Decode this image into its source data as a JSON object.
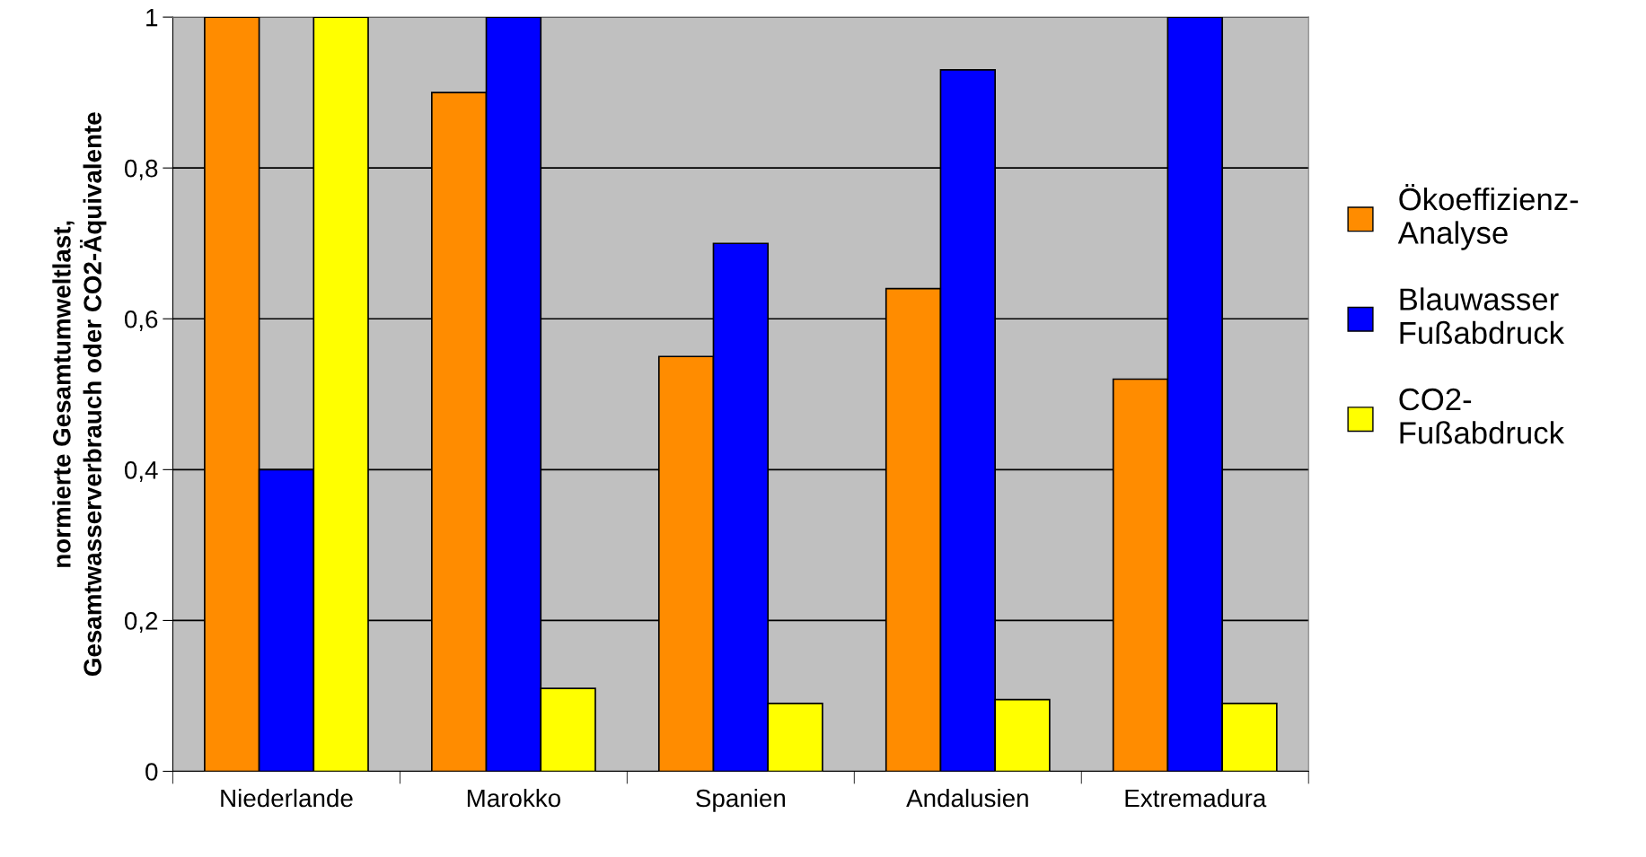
{
  "chart_data": {
    "type": "bar",
    "ylabel": "normierte Gesamtumweltlast,\nGesamtwasserverbrauch oder CO2-Äquivalente",
    "categories": [
      "Niederlande",
      "Marokko",
      "Spanien",
      "Andalusien",
      "Extremadura"
    ],
    "series": [
      {
        "name": "Ökoeffizienz-\nAnalyse",
        "color": "#ff8c00",
        "values": [
          1,
          0.9,
          0.55,
          0.64,
          0.52
        ]
      },
      {
        "name": "Blauwasser\nFußabdruck",
        "color": "#0000ff",
        "values": [
          0.4,
          1,
          0.7,
          0.93,
          1
        ]
      },
      {
        "name": "CO2-\nFußabdruck",
        "color": "#ffff00",
        "values": [
          1,
          0.11,
          0.09,
          0.095,
          0.09
        ]
      }
    ],
    "ylim": [
      0,
      1
    ],
    "yticks": [
      0,
      {
        "value": 0.2,
        "label": "0,2"
      },
      {
        "value": 0.4,
        "label": "0,4"
      },
      {
        "value": 0.6,
        "label": "0,6"
      },
      {
        "value": 0.8,
        "label": "0,8"
      },
      1
    ],
    "grid": "y",
    "legend": "right"
  }
}
